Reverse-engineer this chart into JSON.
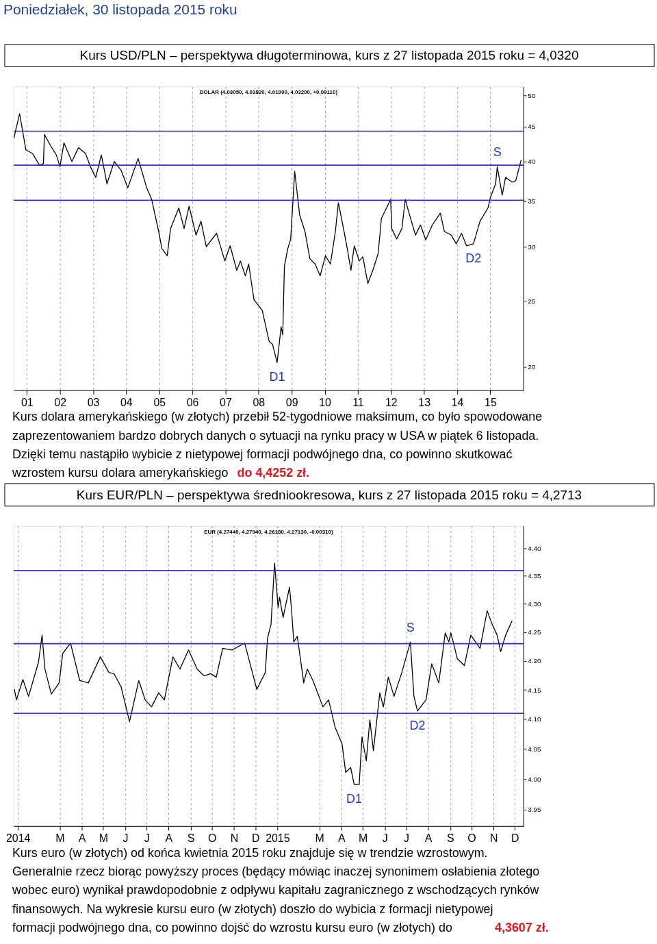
{
  "chart_data": [
    {
      "type": "line",
      "title": "Kurs USD/PLN – perspektywa długoterminowa, kurs z 27 listopada 2015 roku = 4,0320",
      "subtitle": "DOLAR (4.03050, 4.03820, 4.01990, 4.03200, +0.00110)",
      "log": true,
      "grid": "x",
      "x": [
        2000.61,
        2000.78,
        2000.97,
        2001.17,
        2001.38,
        2001.5,
        2001.53,
        2001.69,
        2001.89,
        2002.0,
        2002.12,
        2002.36,
        2002.56,
        2002.77,
        2002.92,
        2003.08,
        2003.25,
        2003.42,
        2003.64,
        2003.85,
        2004.05,
        2004.36,
        2004.62,
        2004.77,
        2004.98,
        2005.08,
        2005.24,
        2005.34,
        2005.59,
        2005.75,
        2005.9,
        2006.11,
        2006.26,
        2006.42,
        2006.73,
        2006.98,
        2007.14,
        2007.34,
        2007.45,
        2007.6,
        2007.7,
        2007.86,
        2008.11,
        2008.22,
        2008.32,
        2008.42,
        2008.56,
        2008.68,
        2008.73,
        2008.78,
        2008.88,
        2008.97,
        2009.09,
        2009.24,
        2009.4,
        2009.55,
        2009.71,
        2009.86,
        2010.02,
        2010.17,
        2010.32,
        2010.41,
        2010.58,
        2010.68,
        2010.79,
        2010.89,
        2011.04,
        2011.15,
        2011.3,
        2011.45,
        2011.61,
        2011.71,
        2011.99,
        2012.02,
        2012.17,
        2012.33,
        2012.43,
        2012.53,
        2012.74,
        2012.89,
        2013.05,
        2013.25,
        2013.49,
        2013.61,
        2013.82,
        2013.97,
        2014.13,
        2014.28,
        2014.49,
        2014.69,
        2014.93,
        2015.0,
        2015.16,
        2015.21,
        2015.36,
        2015.46,
        2015.67,
        2015.77,
        2015.93
      ],
      "series": [
        {
          "color": "#000000",
          "values": [
            43.3,
            47.0,
            41.6,
            41.1,
            39.5,
            39.7,
            43.8,
            42.4,
            40.9,
            39.3,
            42.6,
            40.0,
            41.9,
            41.1,
            39.3,
            37.9,
            40.9,
            37.1,
            40.0,
            38.8,
            36.6,
            40.4,
            36.6,
            35.2,
            31.6,
            29.8,
            29.1,
            31.9,
            34.2,
            31.9,
            34.4,
            31.2,
            32.7,
            30.0,
            31.4,
            28.6,
            30.1,
            27.7,
            28.6,
            27.2,
            28.3,
            25.1,
            24.2,
            22.9,
            21.8,
            21.6,
            20.3,
            22.9,
            22.3,
            28.1,
            29.8,
            30.8,
            38.7,
            33.4,
            31.6,
            28.8,
            28.3,
            27.2,
            29.1,
            28.3,
            31.6,
            34.8,
            31.6,
            29.8,
            27.7,
            30.1,
            28.6,
            29.0,
            26.5,
            27.7,
            29.3,
            33.0,
            35.2,
            31.9,
            30.8,
            31.9,
            35.2,
            33.8,
            31.2,
            32.3,
            30.7,
            32.3,
            33.6,
            31.6,
            31.2,
            30.3,
            31.4,
            30.1,
            30.3,
            32.7,
            34.2,
            35.4,
            37.1,
            39.3,
            35.7,
            37.9,
            37.3,
            37.5,
            40.2
          ]
        }
      ],
      "xlim": [
        2000.6,
        2016.0
      ],
      "xticks": [
        {
          "value": 2001,
          "label": "01"
        },
        {
          "value": 2002,
          "label": "02"
        },
        {
          "value": 2003,
          "label": "03"
        },
        {
          "value": 2004,
          "label": "04"
        },
        {
          "value": 2005,
          "label": "05"
        },
        {
          "value": 2006,
          "label": "06"
        },
        {
          "value": 2007,
          "label": "07"
        },
        {
          "value": 2008,
          "label": "08"
        },
        {
          "value": 2009,
          "label": "09"
        },
        {
          "value": 2010,
          "label": "10"
        },
        {
          "value": 2011,
          "label": "11"
        },
        {
          "value": 2012,
          "label": "12"
        },
        {
          "value": 2013,
          "label": "13"
        },
        {
          "value": 2014,
          "label": "14"
        },
        {
          "value": 2015,
          "label": "15"
        }
      ],
      "ylim": [
        18.5,
        51.5
      ],
      "yticks": [
        20,
        25,
        30,
        35,
        40,
        45,
        50
      ],
      "ref_lines": [
        {
          "axis": "y",
          "value": 44.3,
          "color": "#2a2ad6"
        },
        {
          "axis": "y",
          "value": 39.5,
          "color": "#2a2ad6"
        },
        {
          "axis": "y",
          "value": 35.1,
          "color": "#2a2ad6"
        }
      ],
      "annotations": [
        {
          "text": "S",
          "x": 2015.21,
          "y": 39.3
        },
        {
          "text": "D1",
          "x": 2008.56,
          "y": 20.3
        },
        {
          "text": "D2",
          "x": 2014.49,
          "y": 30.3
        },
        "Poniedziałek, 30 listopada 2015 roku",
        "Kurs dolara amerykańskiego (w złotych) przebił 52-tygodniowe maksimum, co było spowodowane zaprezentowaniem bardzo dobrych danych o sytuacji na rynku pracy w USA w piątek 6 listopada. Dzięki temu nastąpiło wybicie z nietypowej formacji podwójnego dna, co powinno skutkować wzrostem kursu dolara amerykańskiego",
        "do 4,4252 zł."
      ]
    },
    {
      "type": "line",
      "title": "Kurs EUR/PLN – perspektywa średniookresowa, kurs z 27 listopada  2015 roku = 4,2713",
      "subtitle": "EUR (4.27440, 4.27940, 4.26180, 4.27130, -0.00310)",
      "log": true,
      "grid": "x",
      "x": [
        "2013-12-27",
        "2013-12-30",
        "2014-01-08",
        "2014-01-16",
        "2014-01-30",
        "2014-02-04",
        "2014-02-08",
        "2014-02-17",
        "2014-02-28",
        "2014-03-05",
        "2014-03-16",
        "2014-03-29",
        "2014-04-10",
        "2014-04-27",
        "2014-05-09",
        "2014-05-16",
        "2014-05-26",
        "2014-06-07",
        "2014-06-20",
        "2014-06-29",
        "2014-07-08",
        "2014-07-18",
        "2014-07-26",
        "2014-08-07",
        "2014-08-17",
        "2014-08-29",
        "2014-09-10",
        "2014-09-20",
        "2014-09-29",
        "2014-10-07",
        "2014-10-16",
        "2014-10-29",
        "2014-11-16",
        "2014-11-21",
        "2014-12-03",
        "2014-12-15",
        "2014-12-18",
        "2014-12-23",
        "2014-12-28",
        "2015-01-02",
        "2015-01-04",
        "2015-01-09",
        "2015-01-18",
        "2015-01-21",
        "2015-01-24",
        "2015-01-29",
        "2015-02-03",
        "2015-02-07",
        "2015-02-12",
        "2015-02-20",
        "2015-03-06",
        "2015-03-14",
        "2015-03-23",
        "2015-04-02",
        "2015-04-07",
        "2015-04-14",
        "2015-04-19",
        "2015-04-26",
        "2015-04-30",
        "2015-05-06",
        "2015-05-11",
        "2015-05-16",
        "2015-05-25",
        "2015-05-30",
        "2015-06-06",
        "2015-06-14",
        "2015-06-25",
        "2015-07-07",
        "2015-07-12",
        "2015-07-17",
        "2015-07-29",
        "2015-08-06",
        "2015-08-16",
        "2015-08-21",
        "2015-08-25",
        "2015-08-30",
        "2015-09-02",
        "2015-09-11",
        "2015-09-21",
        "2015-09-30",
        "2015-10-13",
        "2015-10-23",
        "2015-10-30",
        "2015-11-06",
        "2015-11-11",
        "2015-11-18",
        "2015-11-27"
      ],
      "series": [
        {
          "color": "#000000",
          "values": [
            4.151,
            4.133,
            4.168,
            4.139,
            4.198,
            4.245,
            4.186,
            4.143,
            4.162,
            4.213,
            4.231,
            4.166,
            4.162,
            4.207,
            4.18,
            4.178,
            4.156,
            4.096,
            4.166,
            4.133,
            4.121,
            4.145,
            4.133,
            4.207,
            4.186,
            4.219,
            4.186,
            4.174,
            4.178,
            4.172,
            4.222,
            4.219,
            4.231,
            4.207,
            4.151,
            4.18,
            4.239,
            4.264,
            4.373,
            4.294,
            4.312,
            4.276,
            4.33,
            4.288,
            4.233,
            4.243,
            4.198,
            4.162,
            4.186,
            4.166,
            4.121,
            4.133,
            4.087,
            4.058,
            4.011,
            4.019,
            3.991,
            3.991,
            4.07,
            4.03,
            4.099,
            4.047,
            4.145,
            4.121,
            4.172,
            4.139,
            4.18,
            4.233,
            4.139,
            4.114,
            4.133,
            4.195,
            4.162,
            4.21,
            4.249,
            4.233,
            4.249,
            4.204,
            4.192,
            4.245,
            4.222,
            4.288,
            4.264,
            4.245,
            4.216,
            4.245,
            4.27
          ]
        }
      ],
      "xlim": [
        "2013-12-26",
        "2015-12-13"
      ],
      "xticks": [
        {
          "value": "2014-01-01",
          "label": "2014"
        },
        {
          "value": "2014-03-01",
          "label": "M"
        },
        {
          "value": "2014-04-01",
          "label": "A"
        },
        {
          "value": "2014-05-01",
          "label": "M"
        },
        {
          "value": "2014-06-01",
          "label": "J"
        },
        {
          "value": "2014-07-01",
          "label": "J"
        },
        {
          "value": "2014-08-01",
          "label": "A"
        },
        {
          "value": "2014-09-01",
          "label": "S"
        },
        {
          "value": "2014-10-01",
          "label": "O"
        },
        {
          "value": "2014-11-01",
          "label": "N"
        },
        {
          "value": "2014-12-01",
          "label": "D"
        },
        {
          "value": "2015-01-01",
          "label": "2015"
        },
        {
          "value": "2015-03-01",
          "label": "M"
        },
        {
          "value": "2015-04-01",
          "label": "A"
        },
        {
          "value": "2015-05-01",
          "label": "M"
        },
        {
          "value": "2015-06-01",
          "label": "J"
        },
        {
          "value": "2015-07-01",
          "label": "J"
        },
        {
          "value": "2015-08-01",
          "label": "A"
        },
        {
          "value": "2015-09-01",
          "label": "S"
        },
        {
          "value": "2015-10-01",
          "label": "O"
        },
        {
          "value": "2015-11-01",
          "label": "N"
        },
        {
          "value": "2015-12-01",
          "label": "D"
        }
      ],
      "ylim": [
        3.923,
        4.441
      ],
      "yticks": [
        {
          "value": 3.95,
          "label": "3.95"
        },
        {
          "value": 4.0,
          "label": "4.00"
        },
        {
          "value": 4.05,
          "label": "4.05"
        },
        {
          "value": 4.1,
          "label": "4.10"
        },
        {
          "value": 4.15,
          "label": "4.15"
        },
        {
          "value": 4.2,
          "label": "4.20"
        },
        {
          "value": 4.25,
          "label": "4.25"
        },
        {
          "value": 4.3,
          "label": "4.30"
        },
        {
          "value": 4.35,
          "label": "4.35"
        },
        {
          "value": 4.4,
          "label": "4.40"
        }
      ],
      "ref_lines": [
        {
          "axis": "y",
          "value": 4.36,
          "color": "#2a2ad6"
        },
        {
          "axis": "y",
          "value": 4.23,
          "color": "#2a2ad6"
        },
        {
          "axis": "y",
          "value": 4.11,
          "color": "#2a2ad6"
        }
      ],
      "annotations": [
        {
          "text": "S",
          "x": "2015-07-07",
          "y": 4.233
        },
        {
          "text": "D1",
          "x": "2015-04-19",
          "y": 3.991
        },
        {
          "text": "D2",
          "x": "2015-07-17",
          "y": 4.114
        },
        "Kurs euro (w złotych) od końca kwietnia 2015 roku znajduje się w trendzie wzrostowym. Generalnie rzecz biorąc powyższy proces (będący mówiąc inaczej synonimem osłabienia złotego wobec euro) wynikał prawdopodobnie z odpływu kapitału zagranicznego z wschodzących rynków finansowych. Na wykresie kursu euro (w złotych) doszło do wybicia z formacji nietypowej formacji podwójnego dna, co powinno dojść do wzrostu kursu euro (w złotych) do",
        "4,3607 zł."
      ]
    }
  ]
}
